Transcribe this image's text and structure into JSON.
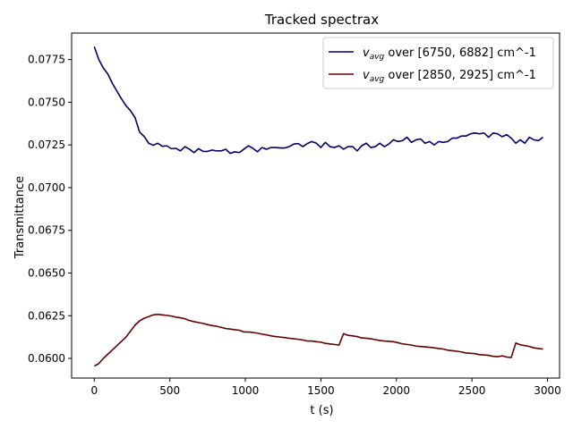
{
  "chart_data": {
    "type": "line",
    "title": "Tracked spectrax",
    "xlabel": "t (s)",
    "ylabel": "Transmittance",
    "xlim": [
      -150,
      3080
    ],
    "ylim": [
      0.05885,
      0.07905
    ],
    "xticks": [
      0,
      500,
      1000,
      1500,
      2000,
      2500,
      3000
    ],
    "yticks": [
      0.06,
      0.0625,
      0.065,
      0.0675,
      0.07,
      0.0725,
      0.075,
      0.0775
    ],
    "xtick_labels": [
      "0",
      "500",
      "1000",
      "1500",
      "2000",
      "2500",
      "3000"
    ],
    "ytick_labels": [
      "0.0600",
      "0.0625",
      "0.0650",
      "0.0675",
      "0.0700",
      "0.0725",
      "0.0750",
      "0.0775"
    ],
    "grid": false,
    "legend_position": "top-right",
    "series": [
      {
        "name": "v_avg over [6750, 6882] cm^-1",
        "legend_symbol": "v",
        "legend_subscript": "avg",
        "legend_rest": " over [6750, 6882] cm^-1",
        "color": "#000066",
        "x": [
          0,
          30,
          60,
          90,
          120,
          150,
          180,
          210,
          240,
          270,
          300,
          330,
          360,
          390,
          420,
          450,
          480,
          510,
          540,
          570,
          600,
          630,
          660,
          690,
          720,
          750,
          780,
          810,
          840,
          870,
          900,
          930,
          960,
          990,
          1020,
          1050,
          1080,
          1110,
          1140,
          1170,
          1200,
          1230,
          1260,
          1290,
          1320,
          1350,
          1380,
          1410,
          1440,
          1470,
          1500,
          1530,
          1560,
          1590,
          1620,
          1650,
          1680,
          1710,
          1740,
          1770,
          1800,
          1830,
          1860,
          1890,
          1920,
          1950,
          1980,
          2010,
          2040,
          2070,
          2100,
          2130,
          2160,
          2190,
          2220,
          2250,
          2280,
          2310,
          2340,
          2370,
          2400,
          2430,
          2460,
          2490,
          2520,
          2550,
          2580,
          2610,
          2640,
          2670,
          2700,
          2730,
          2760,
          2790,
          2820,
          2850,
          2880,
          2910,
          2940,
          2970
        ],
        "y": [
          0.07825,
          0.0775,
          0.077,
          0.07665,
          0.0761,
          0.07565,
          0.0752,
          0.0748,
          0.0745,
          0.0741,
          0.07325,
          0.073,
          0.0726,
          0.07248,
          0.0726,
          0.07242,
          0.07245,
          0.07228,
          0.0723,
          0.07215,
          0.0724,
          0.07225,
          0.07205,
          0.07228,
          0.07212,
          0.07212,
          0.0722,
          0.07215,
          0.07215,
          0.07225,
          0.072,
          0.0721,
          0.07205,
          0.07225,
          0.07245,
          0.0723,
          0.0721,
          0.07235,
          0.07225,
          0.07235,
          0.07235,
          0.07232,
          0.07232,
          0.0724,
          0.07255,
          0.07258,
          0.0724,
          0.07258,
          0.0727,
          0.0726,
          0.07235,
          0.07265,
          0.0724,
          0.07235,
          0.07245,
          0.07225,
          0.0724,
          0.0724,
          0.07215,
          0.07245,
          0.0726,
          0.07235,
          0.0724,
          0.0726,
          0.0724,
          0.07255,
          0.0728,
          0.0727,
          0.07275,
          0.07295,
          0.07265,
          0.0728,
          0.07285,
          0.0726,
          0.0727,
          0.0725,
          0.0727,
          0.07265,
          0.0727,
          0.0729,
          0.0729,
          0.07302,
          0.07302,
          0.07315,
          0.0732,
          0.07315,
          0.0732,
          0.07295,
          0.0732,
          0.07315,
          0.07298,
          0.0731,
          0.0729,
          0.0726,
          0.0728,
          0.0726,
          0.07295,
          0.0728,
          0.07275,
          0.07295
        ]
      },
      {
        "name": "v_avg over [2850, 2925] cm^-1",
        "legend_symbol": "v",
        "legend_subscript": "avg",
        "legend_rest": " over [2850, 2925] cm^-1",
        "color": "#660000",
        "x": [
          0,
          30,
          60,
          90,
          120,
          150,
          180,
          210,
          240,
          270,
          300,
          330,
          360,
          390,
          420,
          450,
          480,
          510,
          540,
          570,
          600,
          630,
          660,
          690,
          720,
          750,
          780,
          810,
          840,
          870,
          900,
          930,
          960,
          990,
          1020,
          1050,
          1080,
          1110,
          1140,
          1170,
          1200,
          1230,
          1260,
          1290,
          1320,
          1350,
          1380,
          1410,
          1440,
          1470,
          1500,
          1530,
          1560,
          1590,
          1620,
          1650,
          1680,
          1710,
          1740,
          1770,
          1800,
          1830,
          1860,
          1890,
          1920,
          1950,
          1980,
          2010,
          2040,
          2070,
          2100,
          2130,
          2160,
          2190,
          2220,
          2250,
          2280,
          2310,
          2340,
          2370,
          2400,
          2430,
          2460,
          2490,
          2520,
          2550,
          2580,
          2610,
          2640,
          2670,
          2700,
          2730,
          2760,
          2790,
          2820,
          2850,
          2880,
          2910,
          2940,
          2970
        ],
        "y": [
          0.05955,
          0.0597,
          0.06,
          0.06025,
          0.0605,
          0.06075,
          0.061,
          0.06125,
          0.0616,
          0.06195,
          0.0622,
          0.06235,
          0.06245,
          0.06255,
          0.06258,
          0.06255,
          0.06252,
          0.06248,
          0.06242,
          0.06238,
          0.06232,
          0.06222,
          0.06215,
          0.0621,
          0.06205,
          0.06198,
          0.06192,
          0.06188,
          0.06182,
          0.06175,
          0.06172,
          0.06168,
          0.06165,
          0.06155,
          0.06155,
          0.06152,
          0.06148,
          0.06142,
          0.06138,
          0.06132,
          0.06128,
          0.06125,
          0.06122,
          0.06118,
          0.06115,
          0.06112,
          0.06108,
          0.06102,
          0.06102,
          0.06098,
          0.06095,
          0.06088,
          0.06085,
          0.06082,
          0.06078,
          0.06145,
          0.06135,
          0.06132,
          0.06128,
          0.0612,
          0.06118,
          0.06115,
          0.0611,
          0.06105,
          0.06102,
          0.061,
          0.06098,
          0.06092,
          0.06085,
          0.06082,
          0.06078,
          0.06072,
          0.0607,
          0.06068,
          0.06065,
          0.06062,
          0.06058,
          0.06055,
          0.06048,
          0.06045,
          0.06042,
          0.06038,
          0.06032,
          0.0603,
          0.06028,
          0.06022,
          0.0602,
          0.06018,
          0.06012,
          0.0601,
          0.06015,
          0.06008,
          0.06005,
          0.0609,
          0.0608,
          0.06075,
          0.0607,
          0.06062,
          0.06058,
          0.06055
        ]
      }
    ]
  }
}
